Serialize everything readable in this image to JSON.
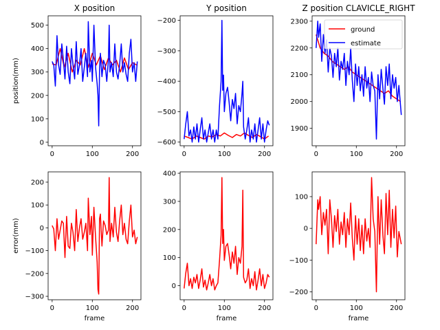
{
  "figure": {
    "title_x": "X position",
    "title_y": "Y position",
    "title_z": "Z position CLAVICLE_RIGHT"
  },
  "colors": {
    "ground": "#ff0000",
    "estimate": "#0000ff",
    "error": "#ff0000"
  },
  "chart_data": [
    {
      "type": "line",
      "title": "X position",
      "xlabel": "",
      "ylabel": "position(mm)",
      "xlim": [
        -10,
        221
      ],
      "ylim": [
        -15,
        540
      ],
      "xticks": [
        0,
        100,
        200
      ],
      "yticks": [
        0,
        100,
        200,
        300,
        400,
        500
      ],
      "legend": "",
      "series": [
        {
          "name": "ground",
          "color": "#ff0000",
          "x": [
            0,
            10,
            20,
            30,
            40,
            50,
            60,
            70,
            80,
            90,
            100,
            110,
            120,
            130,
            140,
            150,
            160,
            170,
            180,
            190,
            200,
            210
          ],
          "y": [
            335,
            330,
            400,
            320,
            380,
            300,
            350,
            330,
            400,
            320,
            380,
            330,
            370,
            310,
            360,
            330,
            350,
            300,
            360,
            310,
            340,
            330
          ]
        },
        {
          "name": "estimate",
          "color": "#0000ff",
          "x": [
            0,
            4,
            8,
            12,
            16,
            20,
            24,
            28,
            32,
            36,
            40,
            44,
            48,
            52,
            56,
            60,
            64,
            68,
            72,
            76,
            80,
            84,
            88,
            90,
            94,
            98,
            100,
            104,
            108,
            112,
            114,
            116,
            118,
            120,
            124,
            128,
            132,
            136,
            140,
            142,
            144,
            148,
            152,
            156,
            160,
            164,
            168,
            172,
            176,
            180,
            184,
            188,
            192,
            196,
            200,
            204,
            208,
            212
          ],
          "y": [
            345,
            330,
            240,
            455,
            330,
            290,
            420,
            350,
            270,
            410,
            300,
            250,
            400,
            330,
            270,
            430,
            290,
            330,
            400,
            260,
            320,
            380,
            280,
            515,
            300,
            350,
            260,
            500,
            320,
            250,
            200,
            70,
            310,
            380,
            280,
            350,
            330,
            260,
            350,
            500,
            300,
            340,
            280,
            420,
            300,
            270,
            330,
            420,
            300,
            340,
            290,
            260,
            380,
            440,
            300,
            340,
            260,
            345
          ]
        }
      ]
    },
    {
      "type": "line",
      "title": "Y position",
      "xlabel": "",
      "ylabel": "",
      "xlim": [
        -10,
        221
      ],
      "ylim": [
        -612,
        -185
      ],
      "xticks": [
        0,
        100,
        200
      ],
      "yticks": [
        -600,
        -500,
        -400,
        -300,
        -200
      ],
      "legend": "",
      "series": [
        {
          "name": "ground",
          "color": "#ff0000",
          "x": [
            0,
            10,
            20,
            30,
            40,
            50,
            60,
            70,
            80,
            90,
            100,
            110,
            120,
            130,
            140,
            150,
            160,
            170,
            180,
            190,
            200,
            210
          ],
          "y": [
            -580,
            -585,
            -590,
            -580,
            -585,
            -590,
            -580,
            -583,
            -575,
            -580,
            -570,
            -578,
            -585,
            -575,
            -580,
            -570,
            -578,
            -585,
            -575,
            -582,
            -590,
            -580
          ]
        },
        {
          "name": "estimate",
          "color": "#0000ff",
          "x": [
            0,
            4,
            8,
            12,
            16,
            20,
            24,
            28,
            32,
            36,
            40,
            44,
            48,
            52,
            56,
            60,
            64,
            68,
            72,
            76,
            80,
            84,
            88,
            92,
            94,
            96,
            98,
            100,
            104,
            108,
            112,
            116,
            120,
            124,
            128,
            132,
            136,
            140,
            144,
            146,
            148,
            152,
            156,
            160,
            164,
            168,
            172,
            176,
            180,
            184,
            188,
            192,
            196,
            200,
            204,
            208,
            212
          ],
          "y": [
            -590,
            -540,
            -500,
            -580,
            -560,
            -600,
            -550,
            -590,
            -540,
            -600,
            -560,
            -520,
            -590,
            -560,
            -600,
            -570,
            -540,
            -590,
            -560,
            -600,
            -560,
            -590,
            -480,
            -400,
            -200,
            -430,
            -380,
            -500,
            -440,
            -420,
            -470,
            -530,
            -460,
            -490,
            -440,
            -540,
            -480,
            -500,
            -440,
            -400,
            -550,
            -590,
            -560,
            -520,
            -600,
            -560,
            -590,
            -540,
            -600,
            -560,
            -520,
            -590,
            -540,
            -600,
            -560,
            -530,
            -545
          ]
        }
      ]
    },
    {
      "type": "line",
      "title": "Z position CLAVICLE_RIGHT",
      "xlabel": "",
      "ylabel": "",
      "xlim": [
        -10,
        221
      ],
      "ylim": [
        1835,
        2320
      ],
      "xticks": [
        0,
        100,
        200
      ],
      "yticks": [
        1900,
        2000,
        2100,
        2200,
        2300
      ],
      "legend": "top-right",
      "series": [
        {
          "name": "ground",
          "color": "#ff0000",
          "x": [
            0,
            10,
            20,
            30,
            40,
            50,
            60,
            70,
            80,
            90,
            100,
            110,
            120,
            130,
            140,
            150,
            160,
            170,
            180,
            190,
            200,
            210
          ],
          "y": [
            2250,
            2200,
            2180,
            2170,
            2150,
            2140,
            2130,
            2120,
            2130,
            2110,
            2100,
            2090,
            2080,
            2070,
            2060,
            2050,
            2040,
            2030,
            2040,
            2020,
            2010,
            2000
          ]
        },
        {
          "name": "estimate",
          "color": "#0000ff",
          "x": [
            0,
            4,
            6,
            10,
            14,
            18,
            22,
            26,
            30,
            34,
            38,
            42,
            46,
            50,
            54,
            58,
            62,
            66,
            70,
            74,
            78,
            82,
            86,
            90,
            94,
            98,
            102,
            106,
            110,
            114,
            118,
            122,
            126,
            130,
            134,
            138,
            142,
            146,
            150,
            154,
            158,
            162,
            166,
            170,
            174,
            178,
            182,
            186,
            190,
            194,
            198,
            202,
            206,
            212
          ],
          "y": [
            2200,
            2300,
            2240,
            2290,
            2150,
            2250,
            2180,
            2230,
            2110,
            2200,
            2170,
            2090,
            2180,
            2130,
            2200,
            2080,
            2150,
            2120,
            2180,
            2060,
            2150,
            2100,
            2200,
            2080,
            2000,
            2140,
            2060,
            2130,
            2040,
            2100,
            2020,
            2130,
            2050,
            2090,
            2000,
            2110,
            2060,
            2040,
            1860,
            2100,
            2010,
            2120,
            2050,
            1990,
            2130,
            2060,
            2140,
            2010,
            2100,
            2050,
            2090,
            2000,
            2060,
            1950
          ]
        }
      ]
    },
    {
      "type": "line",
      "title": "",
      "xlabel": "frame",
      "ylabel": "error(mm)",
      "xlim": [
        -10,
        221
      ],
      "ylim": [
        -315,
        245
      ],
      "xticks": [
        0,
        100,
        200
      ],
      "yticks": [
        -300,
        -200,
        -100,
        0,
        100,
        200
      ],
      "legend": "",
      "series": [
        {
          "name": "",
          "color": "#ff0000",
          "x": [
            0,
            4,
            8,
            12,
            16,
            20,
            24,
            28,
            32,
            36,
            40,
            44,
            48,
            52,
            56,
            60,
            64,
            68,
            72,
            76,
            80,
            84,
            88,
            90,
            94,
            98,
            100,
            104,
            108,
            112,
            114,
            116,
            118,
            120,
            124,
            128,
            132,
            136,
            140,
            142,
            144,
            148,
            152,
            156,
            160,
            164,
            168,
            172,
            176,
            180,
            184,
            188,
            192,
            196,
            200,
            204,
            208,
            212
          ],
          "y": [
            10,
            -5,
            -100,
            40,
            -50,
            -10,
            30,
            20,
            -130,
            50,
            -80,
            -90,
            20,
            -20,
            -100,
            80,
            -60,
            0,
            40,
            -50,
            -20,
            20,
            -100,
            130,
            -30,
            50,
            -120,
            90,
            -40,
            -150,
            -270,
            -290,
            40,
            60,
            -80,
            30,
            10,
            -30,
            -10,
            220,
            -60,
            20,
            -40,
            90,
            -20,
            -60,
            30,
            100,
            -30,
            20,
            -50,
            -70,
            30,
            100,
            -40,
            -10,
            -70,
            -40
          ]
        }
      ]
    },
    {
      "type": "line",
      "title": "",
      "xlabel": "frame",
      "ylabel": "",
      "xlim": [
        -10,
        221
      ],
      "ylim": [
        -50,
        405
      ],
      "xticks": [
        0,
        100,
        200
      ],
      "yticks": [
        0,
        100,
        200,
        300,
        400
      ],
      "legend": "",
      "series": [
        {
          "name": "",
          "color": "#ff0000",
          "x": [
            0,
            4,
            8,
            12,
            16,
            20,
            24,
            28,
            32,
            36,
            40,
            44,
            48,
            52,
            56,
            60,
            64,
            68,
            72,
            76,
            80,
            84,
            88,
            92,
            94,
            96,
            98,
            100,
            104,
            108,
            112,
            116,
            120,
            124,
            128,
            132,
            136,
            140,
            144,
            146,
            148,
            152,
            156,
            160,
            164,
            168,
            172,
            176,
            180,
            184,
            188,
            192,
            196,
            200,
            204,
            208,
            212
          ],
          "y": [
            -10,
            45,
            80,
            0,
            25,
            -10,
            30,
            10,
            40,
            -10,
            20,
            60,
            -5,
            20,
            -15,
            10,
            40,
            0,
            25,
            -15,
            0,
            10,
            90,
            180,
            385,
            150,
            200,
            90,
            140,
            150,
            110,
            60,
            120,
            80,
            140,
            40,
            100,
            80,
            140,
            340,
            30,
            10,
            20,
            60,
            -10,
            25,
            0,
            50,
            -15,
            20,
            60,
            0,
            40,
            -10,
            10,
            40,
            30
          ]
        }
      ]
    },
    {
      "type": "line",
      "title": "",
      "xlabel": "frame",
      "ylabel": "",
      "xlim": [
        -10,
        221
      ],
      "ylim": [
        -225,
        178
      ],
      "xticks": [
        0,
        100,
        200
      ],
      "yticks": [
        -200,
        -100,
        0,
        100
      ],
      "legend": "",
      "series": [
        {
          "name": "",
          "color": "#ff0000",
          "x": [
            0,
            4,
            6,
            10,
            14,
            18,
            22,
            26,
            30,
            34,
            38,
            42,
            46,
            50,
            54,
            58,
            62,
            66,
            70,
            74,
            78,
            82,
            86,
            90,
            94,
            98,
            102,
            106,
            110,
            114,
            118,
            122,
            126,
            130,
            134,
            138,
            142,
            146,
            150,
            154,
            158,
            162,
            166,
            170,
            174,
            178,
            182,
            186,
            190,
            194,
            198,
            202,
            206,
            212
          ],
          "y": [
            -50,
            90,
            60,
            100,
            -20,
            50,
            10,
            60,
            -80,
            90,
            30,
            -60,
            40,
            -10,
            60,
            -50,
            20,
            -20,
            50,
            -60,
            30,
            -20,
            80,
            -30,
            -100,
            40,
            -50,
            30,
            -70,
            10,
            -80,
            30,
            -40,
            0,
            -60,
            160,
            30,
            -10,
            -200,
            100,
            -50,
            90,
            -20,
            -80,
            110,
            -20,
            120,
            -60,
            60,
            -30,
            70,
            -90,
            -10,
            -50
          ]
        }
      ]
    }
  ]
}
